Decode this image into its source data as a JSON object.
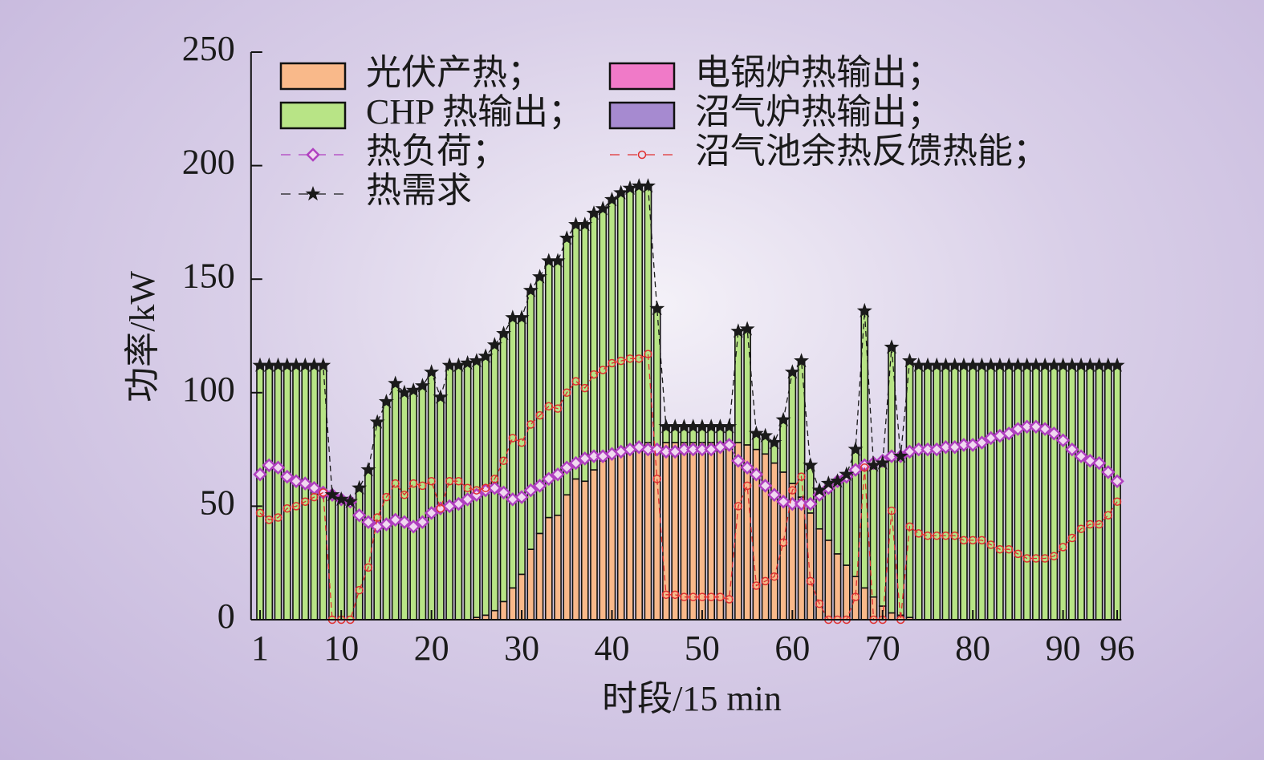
{
  "chart_data": {
    "type": "bar",
    "stacked": true,
    "x_label": "时段/15 min",
    "y_label": "功率/kW",
    "x": [
      1,
      2,
      3,
      4,
      5,
      6,
      7,
      8,
      9,
      10,
      11,
      12,
      13,
      14,
      15,
      16,
      17,
      18,
      19,
      20,
      21,
      22,
      23,
      24,
      25,
      26,
      27,
      28,
      29,
      30,
      31,
      32,
      33,
      34,
      35,
      36,
      37,
      38,
      39,
      40,
      41,
      42,
      43,
      44,
      45,
      46,
      47,
      48,
      49,
      50,
      51,
      52,
      53,
      54,
      55,
      56,
      57,
      58,
      59,
      60,
      61,
      62,
      63,
      64,
      65,
      66,
      67,
      68,
      69,
      70,
      71,
      72,
      73,
      74,
      75,
      76,
      77,
      78,
      79,
      80,
      81,
      82,
      83,
      84,
      85,
      86,
      87,
      88,
      89,
      90,
      91,
      92,
      93,
      94,
      95,
      96
    ],
    "xlim": [
      0,
      97
    ],
    "xticks": [
      1,
      10,
      20,
      30,
      40,
      50,
      60,
      70,
      80,
      90,
      96
    ],
    "ylim": [
      0,
      250
    ],
    "yticks": [
      0,
      50,
      100,
      150,
      200,
      250
    ],
    "series": [
      {
        "name": "光伏产热；",
        "color": "#f9b98a",
        "values": [
          0,
          0,
          0,
          0,
          0,
          0,
          0,
          0,
          0,
          0,
          0,
          0,
          0,
          0,
          0,
          0,
          0,
          0,
          0,
          0,
          0,
          0,
          0,
          0,
          1,
          2,
          4,
          8,
          14,
          20,
          31,
          38,
          45,
          46,
          55,
          62,
          61,
          66,
          70,
          73,
          75,
          76,
          77,
          78,
          75,
          78,
          78,
          78,
          78,
          78,
          78,
          78,
          78,
          78,
          77,
          75,
          73,
          69,
          65,
          60,
          54,
          47,
          40,
          35,
          29,
          24,
          19,
          14,
          10,
          6,
          3,
          2,
          1,
          0,
          0,
          0,
          0,
          0,
          0,
          0,
          0,
          0,
          0,
          0,
          0,
          0,
          0,
          0,
          0,
          0,
          0,
          0,
          0,
          0,
          0,
          0
        ]
      },
      {
        "name": "电锅炉热输出；",
        "color": "#f07ac8",
        "values": [
          0,
          0,
          0,
          0,
          0,
          0,
          0,
          0,
          0,
          0,
          0,
          0,
          0,
          0,
          0,
          0,
          0,
          0,
          0,
          0,
          0,
          0,
          0,
          0,
          0,
          0,
          0,
          0,
          0,
          0,
          0,
          0,
          0,
          0,
          0,
          0,
          0,
          0,
          0,
          0,
          0,
          0,
          0,
          0,
          0,
          0,
          0,
          0,
          0,
          0,
          0,
          0,
          0,
          0,
          0,
          0,
          0,
          0,
          0,
          0,
          0,
          0,
          0,
          0,
          0,
          0,
          0,
          0,
          0,
          0,
          0,
          0,
          0,
          0,
          0,
          0,
          0,
          0,
          0,
          0,
          0,
          0,
          0,
          0,
          0,
          0,
          0,
          0,
          0,
          0,
          0,
          0,
          0,
          0,
          0,
          0
        ]
      },
      {
        "name": "CHP 热输出；",
        "color": "#b8e486",
        "values": [
          112,
          112,
          112,
          112,
          112,
          112,
          112,
          112,
          55,
          53,
          52,
          58,
          66,
          87,
          96,
          104,
          100,
          101,
          103,
          109,
          98,
          112,
          112,
          113,
          113,
          114,
          117,
          118,
          119,
          113,
          114,
          113,
          113,
          112,
          113,
          112,
          113,
          113,
          111,
          112,
          113,
          114,
          114,
          113,
          62,
          7,
          7,
          7,
          7,
          7,
          7,
          7,
          7,
          49,
          51,
          7,
          8,
          9,
          23,
          49,
          60,
          21,
          17,
          25,
          32,
          40,
          56,
          122,
          58,
          63,
          117,
          70,
          113,
          112,
          112,
          112,
          112,
          112,
          112,
          112,
          112,
          112,
          112,
          112,
          112,
          112,
          112,
          112,
          112,
          112,
          112,
          112,
          112,
          112,
          112,
          112
        ]
      },
      {
        "name": "沼气炉热输出；",
        "color": "#a68ad0",
        "values": [
          0,
          0,
          0,
          0,
          0,
          0,
          0,
          0,
          0,
          0,
          0,
          0,
          0,
          0,
          0,
          0,
          0,
          0,
          0,
          0,
          0,
          0,
          0,
          0,
          0,
          0,
          0,
          0,
          0,
          0,
          0,
          0,
          0,
          0,
          0,
          0,
          0,
          0,
          0,
          0,
          0,
          0,
          0,
          0,
          0,
          0,
          0,
          0,
          0,
          0,
          0,
          0,
          0,
          0,
          0,
          0,
          0,
          0,
          0,
          0,
          0,
          0,
          0,
          0,
          0,
          0,
          0,
          0,
          0,
          0,
          0,
          0,
          0,
          0,
          0,
          0,
          0,
          0,
          0,
          0,
          0,
          0,
          0,
          0,
          0,
          0,
          0,
          0,
          0,
          0,
          0,
          0,
          0,
          0,
          0,
          0
        ]
      },
      {
        "name": "热负荷；",
        "type": "line",
        "marker": "diamond",
        "color": "#b040c0",
        "values": [
          64,
          68,
          67,
          63,
          61,
          60,
          58,
          56,
          55,
          53,
          52,
          46,
          43,
          41,
          42,
          44,
          43,
          41,
          43,
          47,
          49,
          50,
          51,
          53,
          55,
          57,
          58,
          56,
          53,
          54,
          57,
          59,
          62,
          64,
          67,
          69,
          71,
          72,
          72,
          73,
          74,
          75,
          76,
          75,
          75,
          74,
          74,
          75,
          75,
          75,
          75,
          76,
          77,
          70,
          67,
          64,
          59,
          55,
          52,
          51,
          51,
          51,
          55,
          58,
          61,
          63,
          66,
          68,
          69,
          70,
          72,
          72,
          74,
          75,
          75,
          75,
          76,
          76,
          77,
          77,
          78,
          80,
          81,
          82,
          84,
          85,
          85,
          84,
          82,
          79,
          75,
          72,
          70,
          69,
          65,
          61
        ]
      },
      {
        "name": "沼气池余热反馈热能；",
        "type": "line",
        "marker": "circle",
        "color": "#e03030",
        "values": [
          47,
          44,
          45,
          49,
          50,
          52,
          54,
          56,
          0,
          0,
          0,
          13,
          23,
          45,
          54,
          60,
          55,
          60,
          59,
          61,
          49,
          61,
          61,
          58,
          57,
          58,
          62,
          70,
          80,
          78,
          86,
          90,
          94,
          93,
          100,
          105,
          102,
          108,
          110,
          113,
          114,
          115,
          115,
          117,
          62,
          11,
          11,
          10,
          10,
          10,
          10,
          10,
          9,
          50,
          59,
          15,
          17,
          19,
          34,
          57,
          63,
          17,
          7,
          0,
          0,
          0,
          10,
          67,
          0,
          0,
          48,
          0,
          41,
          38,
          37,
          37,
          37,
          37,
          35,
          35,
          35,
          33,
          31,
          31,
          29,
          27,
          27,
          27,
          28,
          32,
          36,
          40,
          42,
          42,
          46,
          52
        ]
      },
      {
        "name": "热需求",
        "type": "line",
        "marker": "star",
        "color": "#1a1a1a",
        "values": [
          112,
          112,
          112,
          112,
          112,
          112,
          112,
          112,
          55,
          53,
          52,
          58,
          66,
          87,
          96,
          104,
          100,
          101,
          103,
          109,
          98,
          112,
          112,
          113,
          114,
          116,
          121,
          126,
          133,
          133,
          145,
          151,
          158,
          158,
          168,
          174,
          174,
          179,
          181,
          185,
          188,
          190,
          191,
          191,
          137,
          85,
          85,
          85,
          85,
          85,
          85,
          85,
          85,
          127,
          128,
          82,
          81,
          78,
          88,
          109,
          114,
          68,
          57,
          60,
          61,
          64,
          75,
          136,
          68,
          69,
          120,
          72,
          114,
          112,
          112,
          112,
          112,
          112,
          112,
          112,
          112,
          112,
          112,
          112,
          112,
          112,
          112,
          112,
          112,
          112,
          112,
          112,
          112,
          112,
          112,
          112
        ]
      }
    ]
  }
}
